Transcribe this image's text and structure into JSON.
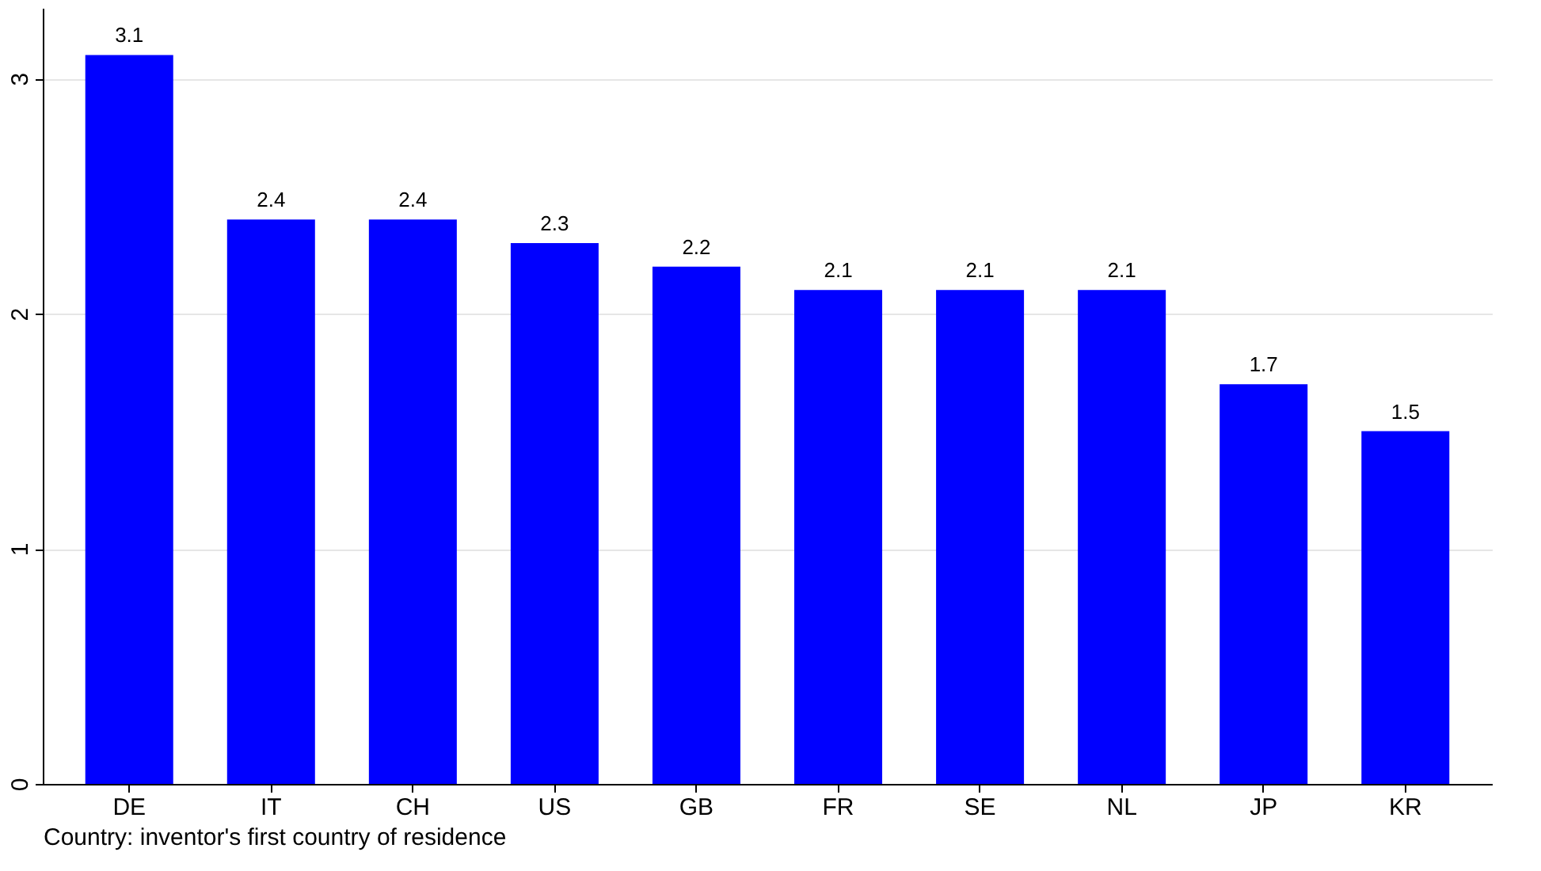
{
  "chart_data": {
    "type": "bar",
    "xlabel": "Country: inventor's first country of residence",
    "categories": [
      "DE",
      "IT",
      "CH",
      "US",
      "GB",
      "FR",
      "SE",
      "NL",
      "JP",
      "KR"
    ],
    "values": [
      3.1,
      2.4,
      2.4,
      2.3,
      2.2,
      2.1,
      2.1,
      2.1,
      1.7,
      1.5
    ],
    "color": "#0000ff",
    "data_labels": true,
    "ylim": [
      0,
      3.3
    ],
    "yticks": [
      0,
      1,
      2,
      3
    ],
    "grid": "y"
  }
}
